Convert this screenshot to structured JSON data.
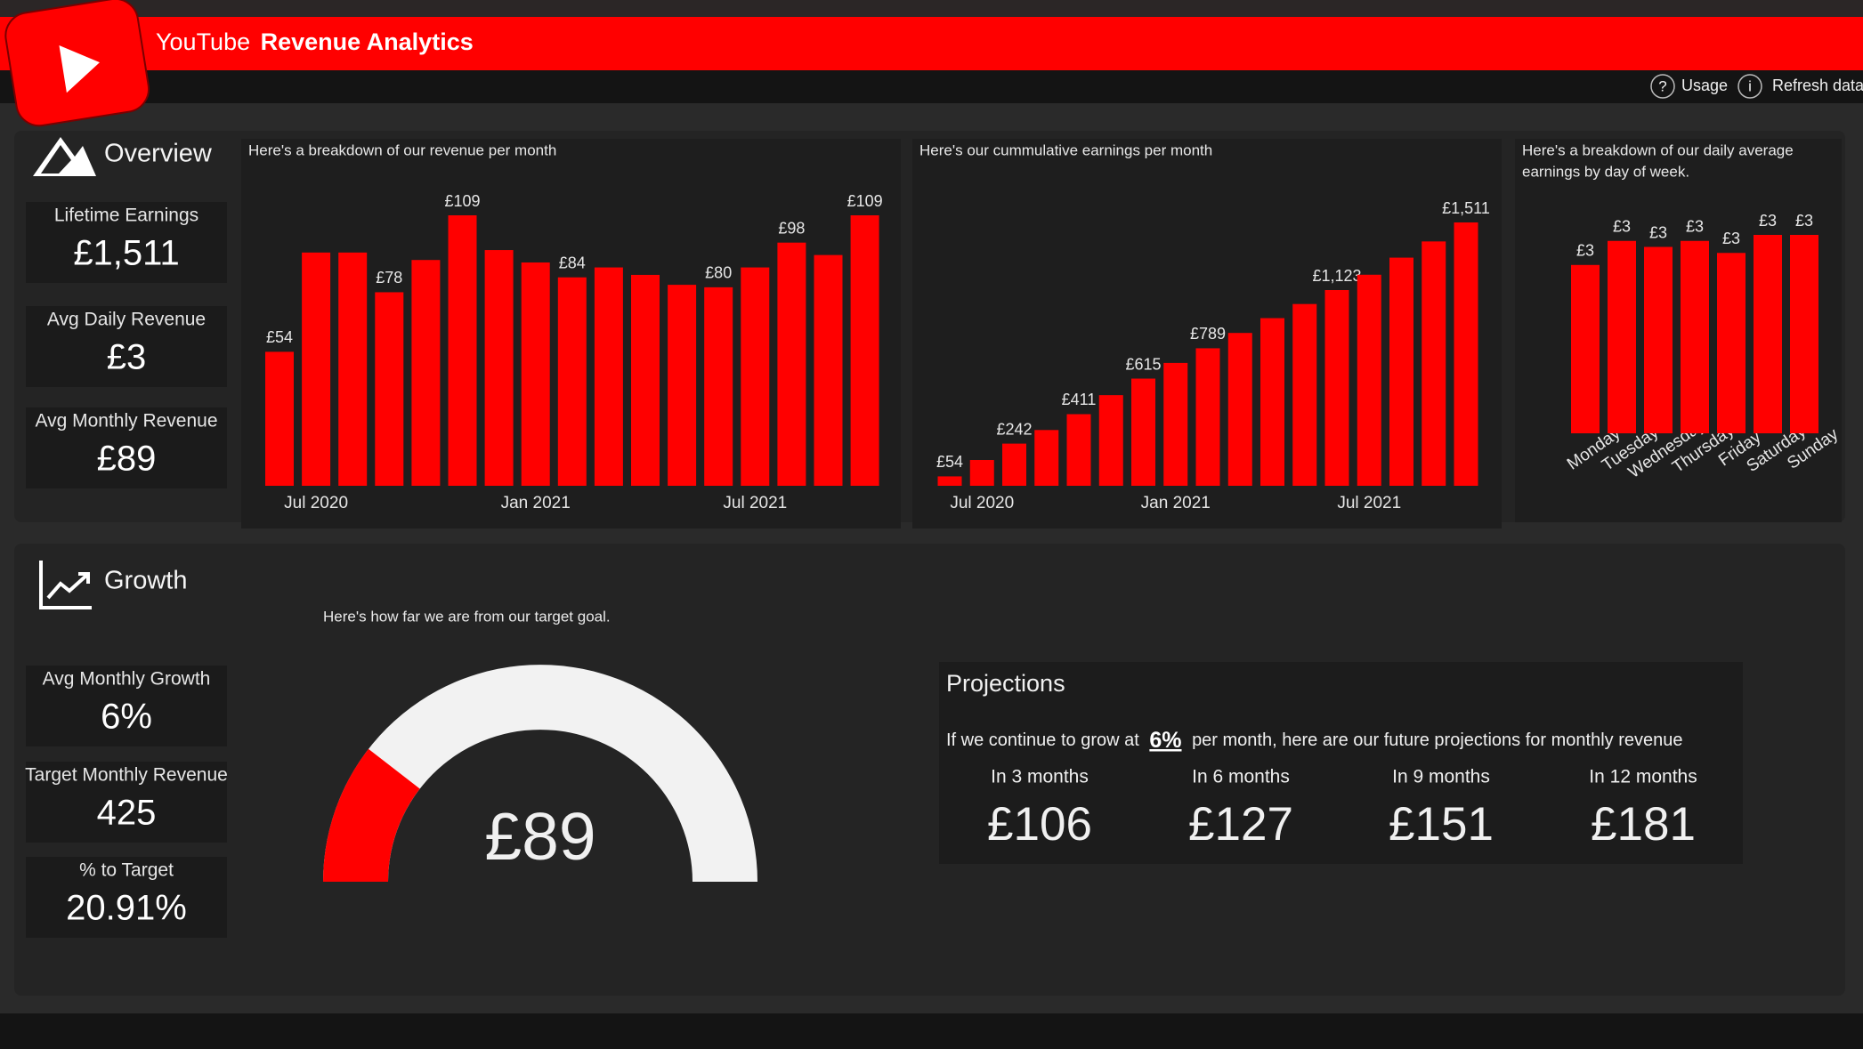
{
  "header": {
    "brand": "YouTube",
    "title": "Revenue Analytics"
  },
  "toolbar": {
    "usage": "Usage",
    "refresh": "Refresh data"
  },
  "overview": {
    "title": "Overview",
    "kpis": [
      {
        "label": "Lifetime Earnings",
        "value": "£1,511"
      },
      {
        "label": "Avg Daily Revenue",
        "value": "£3"
      },
      {
        "label": "Avg Monthly Revenue",
        "value": "£89"
      }
    ]
  },
  "growth": {
    "title": "Growth",
    "kpis": [
      {
        "label": "Avg Monthly Growth",
        "value": "6%"
      },
      {
        "label": "Target Monthly Revenue",
        "value": 425
      },
      {
        "label": "% to Target",
        "value": "20.91%"
      }
    ]
  },
  "chart_data": [
    {
      "type": "bar",
      "subtitle": "Here's a breakdown of our revenue per month",
      "color": "#ff0000",
      "categories": [
        null,
        "Jul 2020",
        null,
        null,
        null,
        null,
        null,
        "Jan 2021",
        null,
        null,
        null,
        null,
        null,
        "Jul 2021",
        null,
        null,
        null
      ],
      "values": [
        54,
        94,
        94,
        78,
        91,
        109,
        95,
        90,
        84,
        88,
        85,
        81,
        80,
        88,
        98,
        93,
        109
      ],
      "value_labels": [
        "£54",
        null,
        null,
        "£78",
        null,
        "£109",
        null,
        null,
        "£84",
        null,
        null,
        null,
        "£80",
        null,
        "£98",
        null,
        "£109"
      ]
    },
    {
      "type": "bar",
      "subtitle": "Here's our cummulative earnings per month",
      "color": "#ff0000",
      "categories": [
        null,
        "Jul 2020",
        null,
        null,
        null,
        null,
        null,
        "Jan 2021",
        null,
        null,
        null,
        null,
        null,
        "Jul 2021",
        null,
        null,
        null
      ],
      "values": [
        54,
        148,
        242,
        320,
        411,
        520,
        615,
        705,
        789,
        877,
        962,
        1043,
        1123,
        1211,
        1309,
        1402,
        1511
      ],
      "value_labels": [
        "£54",
        null,
        "£242",
        null,
        "£411",
        null,
        "£615",
        null,
        "£789",
        null,
        null,
        null,
        "£1,123",
        null,
        null,
        null,
        "£1,511"
      ]
    },
    {
      "type": "bar",
      "subtitle": [
        "Here's a breakdown of our daily average",
        "earnings by day of week."
      ],
      "color": "#ff0000",
      "rotate_labels": true,
      "categories": [
        "Monday",
        "Tuesday",
        "Wednesday",
        "Thursday",
        "Friday",
        "Saturday",
        "Sunday"
      ],
      "values": [
        2.8,
        3.2,
        3.1,
        3.2,
        3.0,
        3.3,
        3.3
      ],
      "value_labels": [
        "£3",
        "£3",
        "£3",
        "£3",
        "£3",
        "£3",
        "£3"
      ]
    },
    {
      "type": "gauge",
      "subtitle": "Here's how far we are from our target goal.",
      "color": "#ff0000",
      "track_color": "#f2f2f2",
      "value": 89,
      "value_label": "£89"
    }
  ],
  "projections": {
    "title": "Projections",
    "intro_before": "If we continue to grow at",
    "rate": "6%",
    "intro_after": "per month, here are our future projections for monthly revenue",
    "items": [
      {
        "label": "In 3 months",
        "value": "£106"
      },
      {
        "label": "In 6 months",
        "value": "£127"
      },
      {
        "label": "In 9 months",
        "value": "£151"
      },
      {
        "label": "In 12 months",
        "value": "£181"
      }
    ]
  }
}
